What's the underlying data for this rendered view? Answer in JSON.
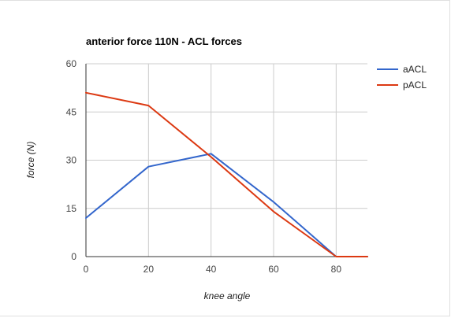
{
  "chart_data": {
    "type": "line",
    "title": "anterior force 110N - ACL forces",
    "xlabel": "knee angle",
    "ylabel": "force (N)",
    "x": [
      0,
      20,
      40,
      60,
      80,
      90
    ],
    "xlim": [
      0,
      90
    ],
    "ylim": [
      0,
      60
    ],
    "x_ticks": [
      0,
      20,
      40,
      60,
      80
    ],
    "y_ticks": [
      0,
      15,
      30,
      45,
      60
    ],
    "grid": true,
    "legend_position": "right",
    "series": [
      {
        "name": "aACL",
        "color": "#3366cc",
        "values": [
          12,
          28,
          32,
          17,
          0,
          0
        ]
      },
      {
        "name": "pACL",
        "color": "#dc3912",
        "values": [
          51,
          47,
          31,
          14,
          0,
          0
        ]
      }
    ]
  }
}
